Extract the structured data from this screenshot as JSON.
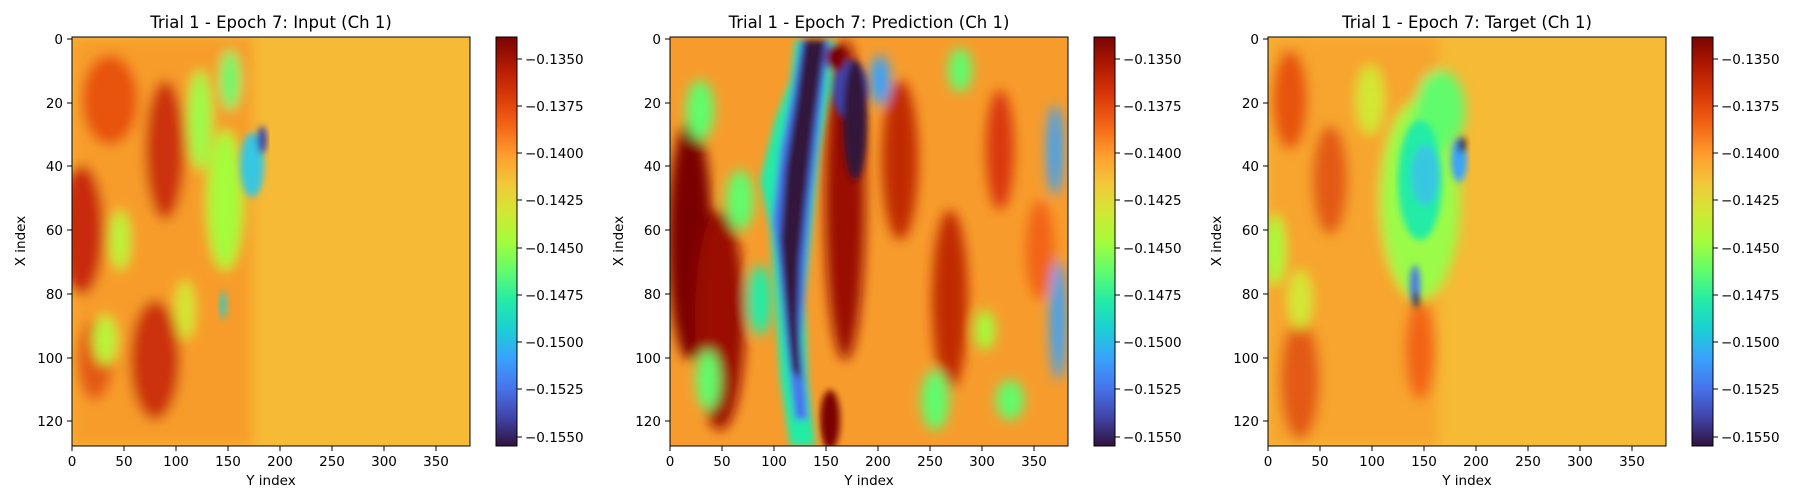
{
  "chart_data": [
    {
      "type": "heatmap",
      "title": "Trial 1 - Epoch 7: Input (Ch 1)",
      "xlabel": "Y index",
      "ylabel": "X index",
      "xticks": [
        "0",
        "50",
        "100",
        "150",
        "200",
        "250",
        "300",
        "350"
      ],
      "yticks": [
        "0",
        "20",
        "40",
        "60",
        "80",
        "100",
        "120"
      ],
      "xlim": [
        0,
        383
      ],
      "ylim": [
        128,
        0
      ],
      "colorbar": {
        "min": -0.1557,
        "max": -0.134,
        "ticks": [
          "−0.1350",
          "−0.1375",
          "−0.1400",
          "−0.1425",
          "−0.1450",
          "−0.1475",
          "−0.1500",
          "−0.1525",
          "−0.1550"
        ]
      },
      "grid": false,
      "colormap": "turbo"
    },
    {
      "type": "heatmap",
      "title": "Trial 1 - Epoch 7: Prediction (Ch 1)",
      "xlabel": "Y index",
      "ylabel": "X index",
      "xticks": [
        "0",
        "50",
        "100",
        "150",
        "200",
        "250",
        "300",
        "350"
      ],
      "yticks": [
        "0",
        "20",
        "40",
        "60",
        "80",
        "100",
        "120"
      ],
      "xlim": [
        0,
        383
      ],
      "ylim": [
        128,
        0
      ],
      "colorbar": {
        "min": -0.1557,
        "max": -0.134,
        "ticks": [
          "−0.1350",
          "−0.1375",
          "−0.1400",
          "−0.1425",
          "−0.1450",
          "−0.1475",
          "−0.1500",
          "−0.1525",
          "−0.1550"
        ]
      },
      "grid": false,
      "colormap": "turbo"
    },
    {
      "type": "heatmap",
      "title": "Trial 1 - Epoch 7: Target (Ch 1)",
      "xlabel": "Y index",
      "ylabel": "X index",
      "xticks": [
        "0",
        "50",
        "100",
        "150",
        "200",
        "250",
        "300",
        "350"
      ],
      "yticks": [
        "0",
        "20",
        "40",
        "60",
        "80",
        "100",
        "120"
      ],
      "xlim": [
        0,
        383
      ],
      "ylim": [
        128,
        0
      ],
      "colorbar": {
        "min": -0.1557,
        "max": -0.134,
        "ticks": [
          "−0.1350",
          "−0.1375",
          "−0.1400",
          "−0.1425",
          "−0.1450",
          "−0.1475",
          "−0.1500",
          "−0.1525",
          "−0.1550"
        ]
      },
      "grid": false,
      "colormap": "turbo"
    }
  ],
  "colors": {
    "turbo_stops": [
      "#30123b",
      "#4145ab",
      "#4675ed",
      "#39a2fc",
      "#1bcfd4",
      "#24eca6",
      "#61fc6c",
      "#a4fc3b",
      "#d1e834",
      "#f3c63a",
      "#fe9b2d",
      "#f36315",
      "#d93807",
      "#b11901",
      "#7a0403"
    ]
  }
}
